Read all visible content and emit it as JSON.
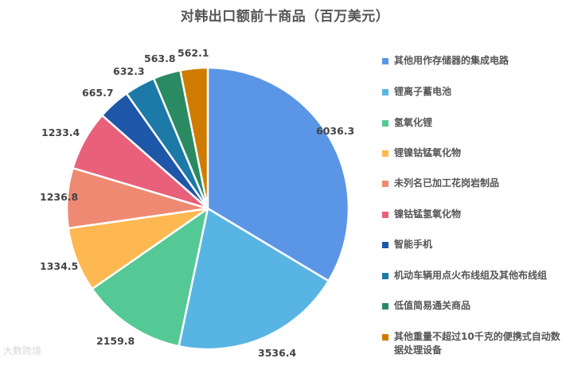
{
  "chart_data": {
    "type": "pie",
    "title": "对韩出口额前十商品（百万美元）",
    "unit": "百万美元",
    "start_angle": "12 o'clock, clockwise",
    "legend_position": "right",
    "categories": [
      "其他用作存储器的集成电路",
      "锂离子蓄电池",
      "氢氧化锂",
      "锂镍钴锰氧化物",
      "未列名已加工花岗岩制品",
      "镍钴锰氢氧化物",
      "智能手机",
      "机动车辆用点火布线组及其他布线组",
      "低值简易通关商品",
      "其他重量不超过10千克的便携式自动数据处理设备"
    ],
    "values": [
      6036.3,
      3536.4,
      2159.8,
      1334.5,
      1236.8,
      1233.4,
      665.7,
      632.3,
      563.8,
      562.1
    ],
    "colors": [
      "#5b96e6",
      "#58b5e3",
      "#55c995",
      "#fdb852",
      "#ee8a72",
      "#e9607a",
      "#1e56a8",
      "#1c79a8",
      "#2a8a62",
      "#cf7b00"
    ]
  },
  "labels": {
    "values_text": [
      "6036.3",
      "3536.4",
      "2159.8",
      "1334.5",
      "1236.8",
      "1233.4",
      "665.7",
      "632.3",
      "563.8",
      "562.1"
    ]
  },
  "legend": {
    "items": [
      {
        "label": "其他用作存储器的集成电路",
        "color": "#5b96e6"
      },
      {
        "label": "锂离子蓄电池",
        "color": "#58b5e3"
      },
      {
        "label": "氢氧化锂",
        "color": "#55c995"
      },
      {
        "label": "锂镍钴锰氧化物",
        "color": "#fdb852"
      },
      {
        "label": "未列名已加工花岗岩制品",
        "color": "#ee8a72"
      },
      {
        "label": "镍钴锰氢氧化物",
        "color": "#e9607a"
      },
      {
        "label": "智能手机",
        "color": "#1e56a8"
      },
      {
        "label": "机动车辆用点火布线组及其他布线组",
        "color": "#1c79a8"
      },
      {
        "label": "低值简易通关商品",
        "color": "#2a8a62"
      },
      {
        "label": "其他重量不超过10千克的便携式自动数据处理设备",
        "color": "#cf7b00"
      }
    ]
  },
  "watermark": "大数跨境"
}
